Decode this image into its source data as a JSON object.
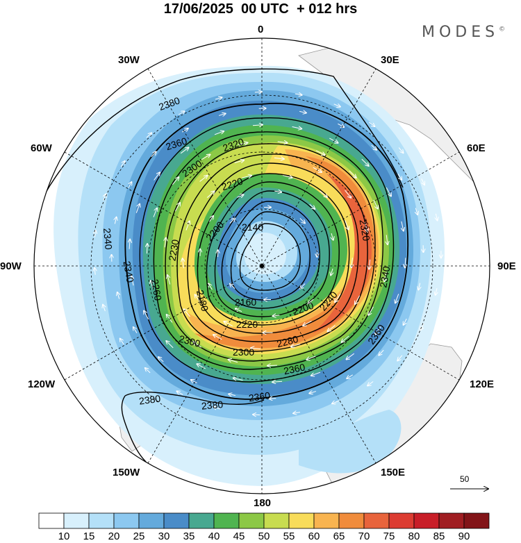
{
  "title": "17/06/2025  00 UTC  + 012 hrs",
  "brand": "MODES",
  "brand_mark": "©",
  "longitude_labels": [
    "0",
    "30E",
    "60E",
    "90E",
    "120E",
    "150E",
    "180",
    "150W",
    "120W",
    "90W",
    "60W",
    "30W"
  ],
  "contour_labels": [
    "2380",
    "2360",
    "2360",
    "2360",
    "2340",
    "2340",
    "2320",
    "2300",
    "2300",
    "2280",
    "2260",
    "2240",
    "2230",
    "2220",
    "2220",
    "2200",
    "2180",
    "2160",
    "2140",
    "2340",
    "2320",
    "2380",
    "2380",
    "2360",
    "2300",
    "2200"
  ],
  "vector_scale_label": "50",
  "colorbar": {
    "labels": [
      "10",
      "15",
      "20",
      "25",
      "30",
      "35",
      "40",
      "45",
      "50",
      "55",
      "60",
      "65",
      "70",
      "75",
      "80",
      "85",
      "90"
    ],
    "colors": [
      "#ffffff",
      "#d8f0fc",
      "#b4e0f8",
      "#8cc8f0",
      "#64aadc",
      "#4a8cc8",
      "#48a890",
      "#50b450",
      "#8cc846",
      "#c8dc50",
      "#f8dc5a",
      "#f8b450",
      "#f08c3c",
      "#e8643c",
      "#dc3c32",
      "#c81e28",
      "#a01e22",
      "#821418"
    ]
  },
  "wind_colors": {
    "land": "#f0f0f0",
    "contour": "#000000"
  }
}
